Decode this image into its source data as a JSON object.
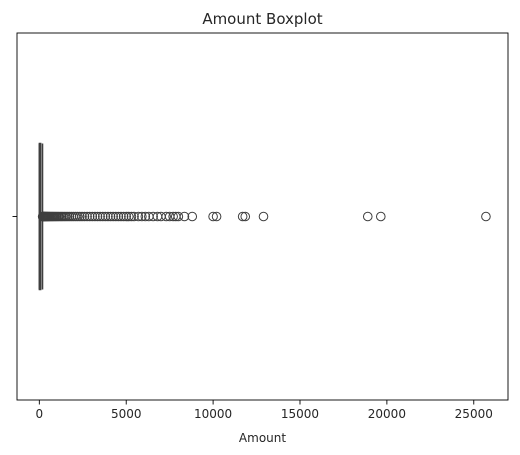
{
  "chart_data": {
    "type": "boxplot",
    "title": "Amount Boxplot",
    "xlabel": "Amount",
    "ylabel": "",
    "orientation": "horizontal",
    "xlim": [
      -1285,
      26970
    ],
    "xticks": [
      0,
      5000,
      10000,
      15000,
      20000,
      25000
    ],
    "xtick_labels": [
      "0",
      "5000",
      "10000",
      "15000",
      "20000",
      "25000"
    ],
    "box": {
      "min": 0,
      "q1": 5.6,
      "median": 22,
      "q3": 77.2,
      "whisker_high": 184.5
    },
    "outliers": [
      190,
      200,
      215,
      230,
      250,
      270,
      290,
      310,
      335,
      360,
      390,
      420,
      450,
      485,
      520,
      560,
      600,
      650,
      700,
      750,
      800,
      860,
      920,
      980,
      1050,
      1120,
      1200,
      1280,
      1360,
      1450,
      1540,
      1640,
      1740,
      1850,
      1960,
      2080,
      2200,
      2330,
      2460,
      2600,
      2750,
      2900,
      3050,
      3200,
      3350,
      3500,
      3650,
      3800,
      3950,
      4100,
      4250,
      4400,
      4550,
      4700,
      4850,
      5000,
      5150,
      5300,
      5450,
      5700,
      5900,
      6100,
      6300,
      6550,
      6800,
      7000,
      7300,
      7500,
      7700,
      7850,
      8000,
      8350,
      8800,
      10000,
      10200,
      11700,
      11850,
      12900,
      18900,
      19650,
      25700
    ],
    "colors": {
      "box_line": "#3f3f3f",
      "axis": "#000000",
      "text": "#262626"
    },
    "grid": false,
    "legend": "none"
  }
}
